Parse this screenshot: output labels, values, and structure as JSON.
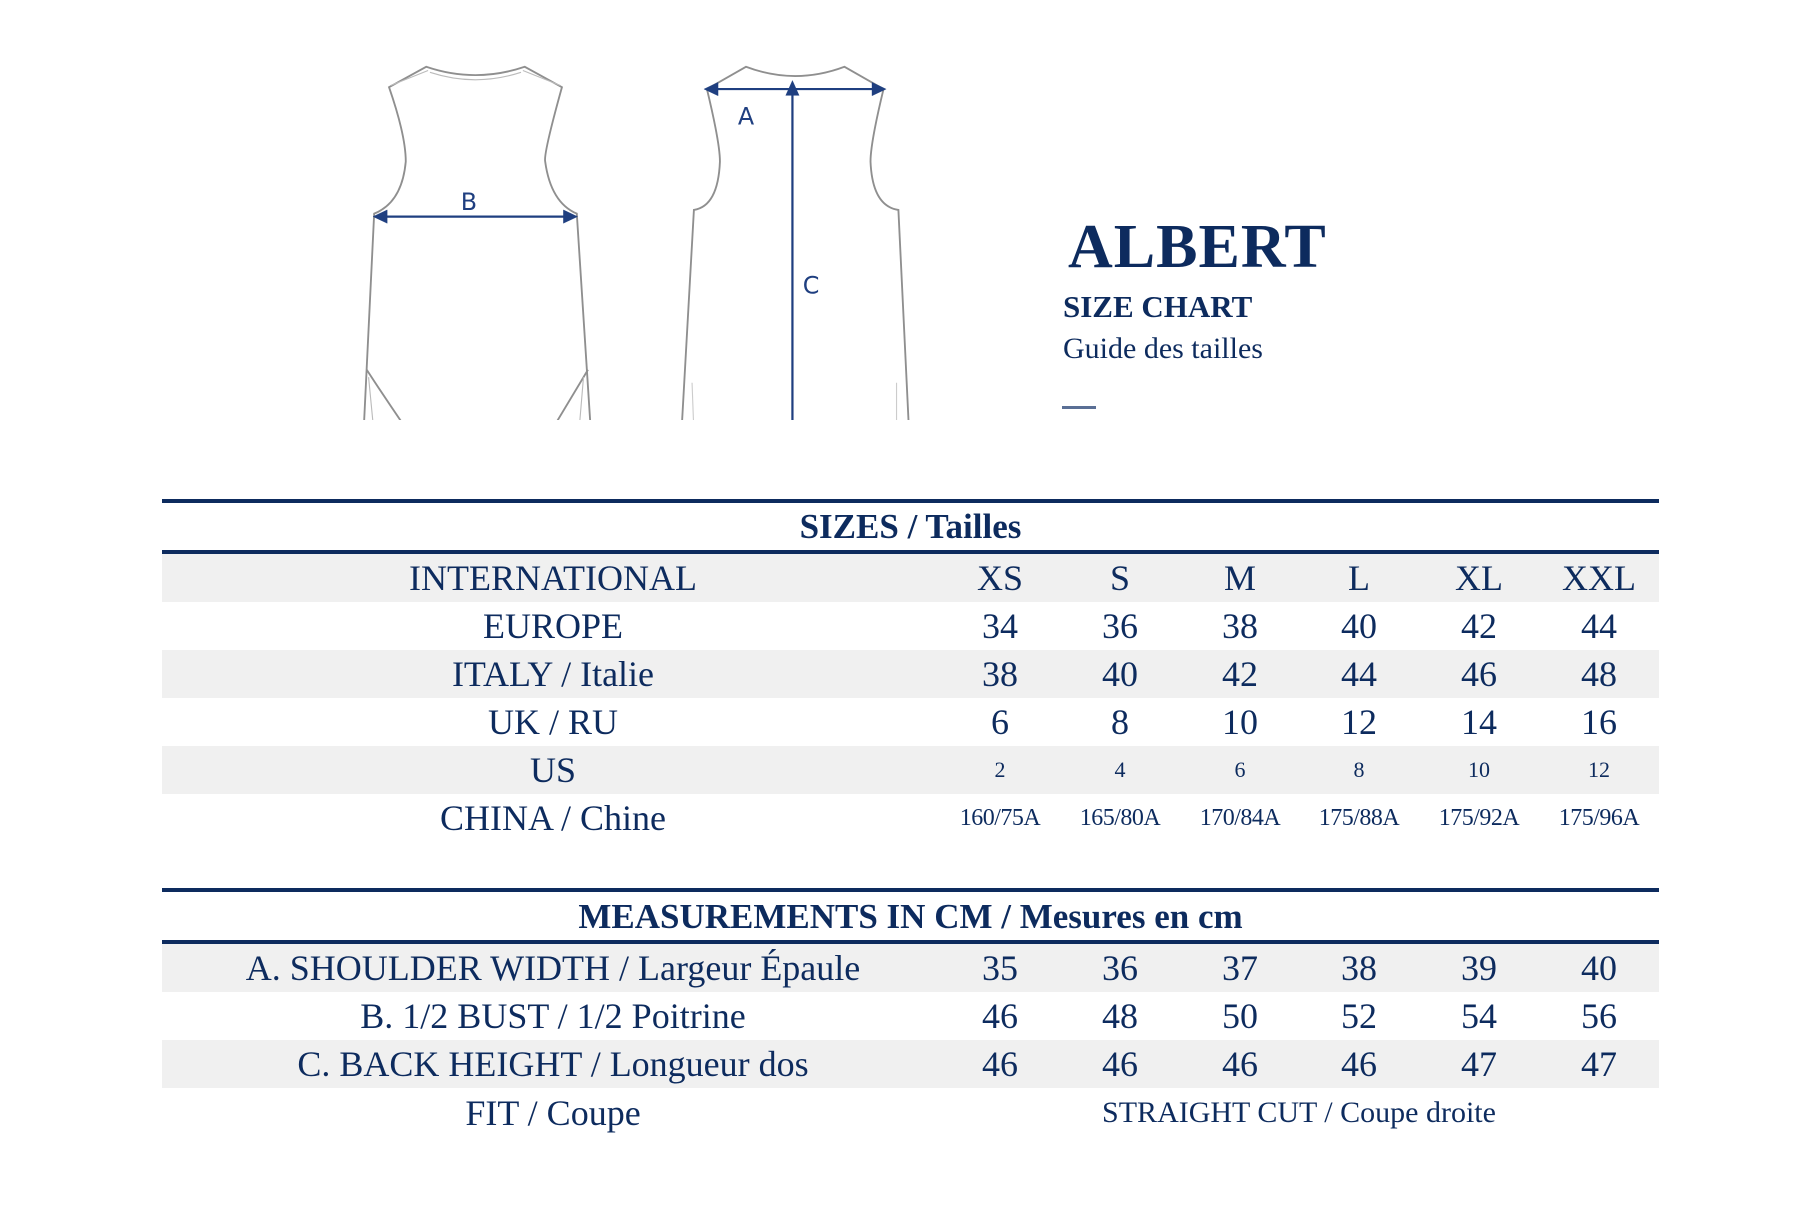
{
  "header": {
    "title": "ALBERT",
    "subtitle": "SIZE CHART",
    "subtitle_fr": "Guide des tailles"
  },
  "diagram": {
    "labels": {
      "a": "A",
      "b": "B",
      "c": "C"
    }
  },
  "sizes": {
    "heading": "SIZES / Tailles",
    "rows": [
      {
        "label": "INTERNATIONAL",
        "values": [
          "XS",
          "S",
          "M",
          "L",
          "XL",
          "XXL"
        ]
      },
      {
        "label": "EUROPE",
        "values": [
          "34",
          "36",
          "38",
          "40",
          "42",
          "44"
        ]
      },
      {
        "label": "ITALY / Italie",
        "values": [
          "38",
          "40",
          "42",
          "44",
          "46",
          "48"
        ]
      },
      {
        "label": "UK / RU",
        "values": [
          "6",
          "8",
          "10",
          "12",
          "14",
          "16"
        ]
      },
      {
        "label": "US",
        "values": [
          "2",
          "4",
          "6",
          "8",
          "10",
          "12"
        ]
      },
      {
        "label": "CHINA / Chine",
        "values": [
          "160/75A",
          "165/80A",
          "170/84A",
          "175/88A",
          "175/92A",
          "175/96A"
        ]
      }
    ]
  },
  "measurements": {
    "heading": "MEASUREMENTS IN CM / Mesures en cm",
    "rows": [
      {
        "label": "A. SHOULDER WIDTH / Largeur Épaule",
        "values": [
          "35",
          "36",
          "37",
          "38",
          "39",
          "40"
        ]
      },
      {
        "label": "B. 1/2 BUST / 1/2 Poitrine",
        "values": [
          "46",
          "48",
          "50",
          "52",
          "54",
          "56"
        ]
      },
      {
        "label": "C. BACK HEIGHT / Longueur dos",
        "values": [
          "46",
          "46",
          "46",
          "46",
          "47",
          "47"
        ]
      }
    ],
    "fit": {
      "label": "FIT / Coupe",
      "value": "STRAIGHT CUT / Coupe droite"
    }
  },
  "colors": {
    "navy": "#0d2b5e",
    "row_gray": "#f0f0f0",
    "outline": "#9a9a9a"
  }
}
